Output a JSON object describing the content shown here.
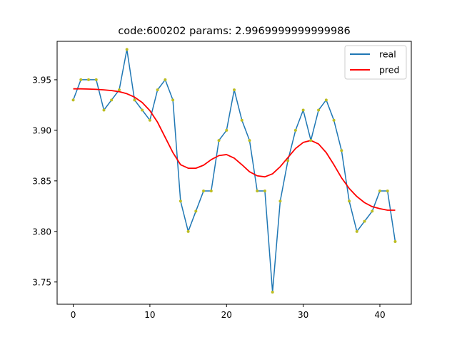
{
  "chart_data": {
    "type": "line",
    "title": "code:600202 params: 2.9969999999999986",
    "xlabel": "",
    "ylabel": "",
    "xlim": [
      -2.1,
      44.1
    ],
    "ylim": [
      3.728,
      3.988
    ],
    "xticks": [
      0,
      10,
      20,
      30,
      40
    ],
    "yticks": [
      3.75,
      3.8,
      3.85,
      3.9,
      3.95
    ],
    "ytick_labels": [
      "3.75",
      "3.80",
      "3.85",
      "3.90",
      "3.95"
    ],
    "grid": false,
    "legend_position": "top-right",
    "x": [
      0,
      1,
      2,
      3,
      4,
      5,
      6,
      7,
      8,
      9,
      10,
      11,
      12,
      13,
      14,
      15,
      16,
      17,
      18,
      19,
      20,
      21,
      22,
      23,
      24,
      25,
      26,
      27,
      28,
      29,
      30,
      31,
      32,
      33,
      34,
      35,
      36,
      37,
      38,
      39,
      40,
      41,
      42
    ],
    "series": [
      {
        "name": "real",
        "color": "#1f77b4",
        "marker_color": "#bcbd22",
        "values": [
          3.93,
          3.95,
          3.95,
          3.95,
          3.92,
          3.93,
          3.94,
          3.98,
          3.93,
          3.92,
          3.91,
          3.94,
          3.95,
          3.93,
          3.83,
          3.8,
          3.82,
          3.84,
          3.84,
          3.89,
          3.9,
          3.94,
          3.91,
          3.89,
          3.84,
          3.84,
          3.74,
          3.83,
          3.87,
          3.9,
          3.92,
          3.89,
          3.92,
          3.93,
          3.91,
          3.88,
          3.83,
          3.8,
          3.81,
          3.82,
          3.84,
          3.84,
          3.79
        ]
      },
      {
        "name": "pred",
        "color": "#ff0000",
        "values": [
          3.941,
          3.941,
          3.9408,
          3.9405,
          3.94,
          3.9393,
          3.9382,
          3.9362,
          3.9328,
          3.9275,
          3.9195,
          3.908,
          3.893,
          3.878,
          3.866,
          3.8625,
          3.8625,
          3.8655,
          3.871,
          3.875,
          3.876,
          3.8725,
          3.866,
          3.859,
          3.855,
          3.854,
          3.857,
          3.864,
          3.873,
          3.882,
          3.888,
          3.89,
          3.8865,
          3.878,
          3.866,
          3.853,
          3.8425,
          3.8345,
          3.8285,
          3.8245,
          3.8225,
          3.821,
          3.821
        ]
      }
    ]
  }
}
